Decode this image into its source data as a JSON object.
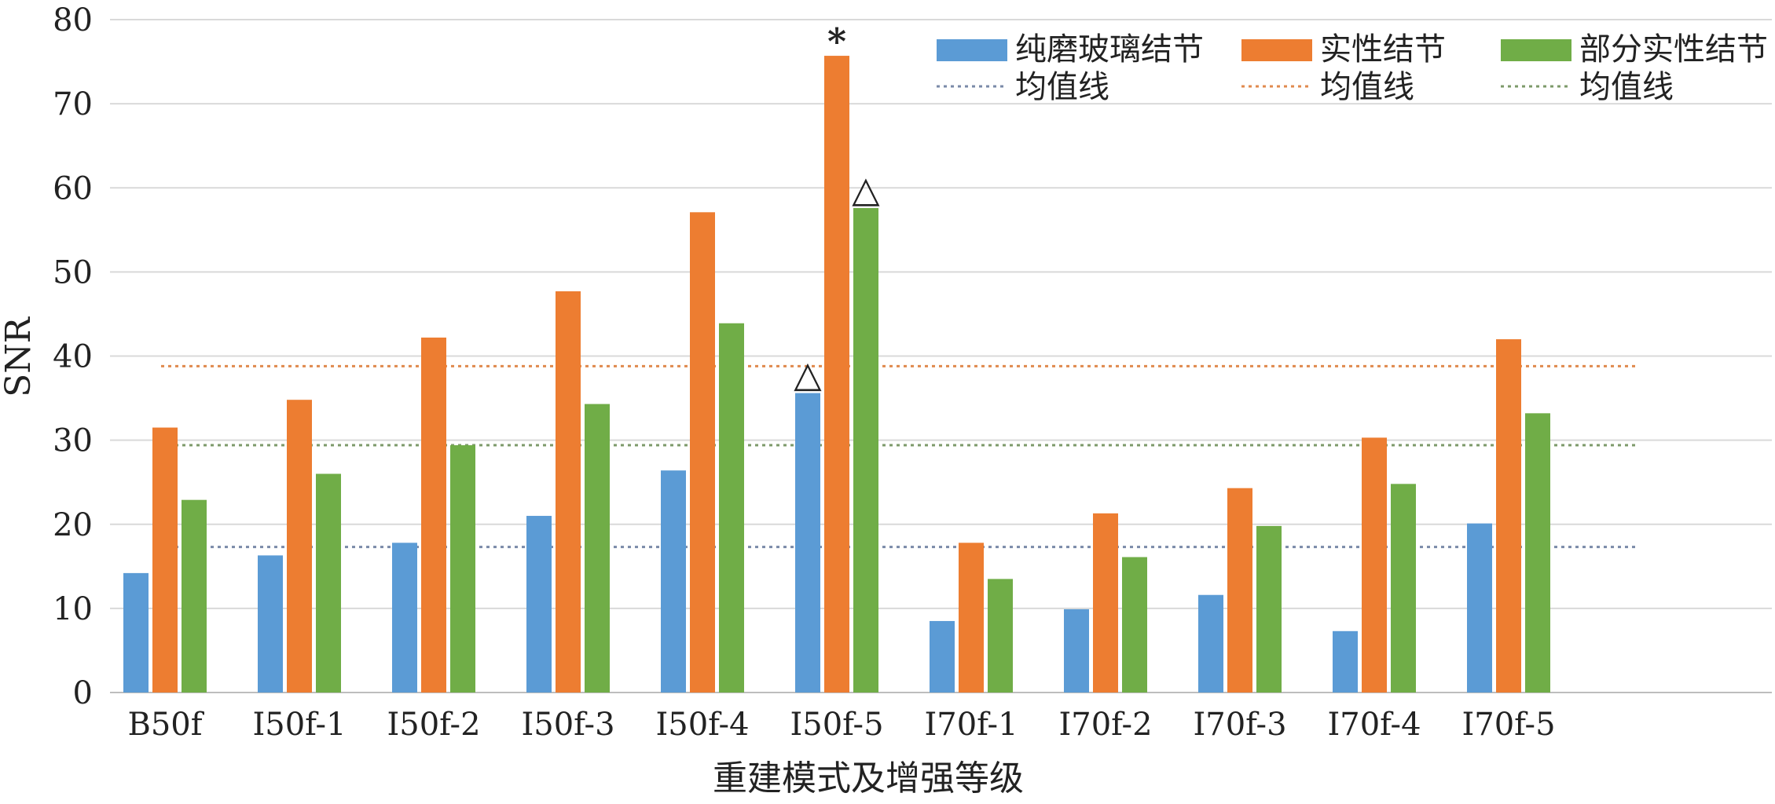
{
  "chart_data": {
    "type": "bar",
    "title": "",
    "xlabel": "重建模式及增强等级",
    "ylabel": "SNR",
    "ylim": [
      0,
      80
    ],
    "yticks": [
      "0",
      "10",
      "20",
      "30",
      "40",
      "50",
      "60",
      "70",
      "80"
    ],
    "grid": true,
    "legend_position": "top-right",
    "categories": [
      "B50f",
      "I50f-1",
      "I50f-2",
      "I50f-3",
      "I50f-4",
      "I50f-5",
      "I70f-1",
      "I70f-2",
      "I70f-3",
      "I70f-4",
      "I70f-5"
    ],
    "series": [
      {
        "name": "纯磨玻璃结节",
        "color": "#5b9bd5",
        "values": [
          14.2,
          16.3,
          17.8,
          21.0,
          26.4,
          35.6,
          8.5,
          9.9,
          11.6,
          7.3,
          20.1
        ]
      },
      {
        "name": "实性结节",
        "color": "#ed7d31",
        "values": [
          31.5,
          34.8,
          42.2,
          47.7,
          57.1,
          75.7,
          17.8,
          21.3,
          24.3,
          30.3,
          42.0
        ]
      },
      {
        "name": "部分实性结节",
        "color": "#70ad47",
        "values": [
          22.9,
          26.0,
          29.4,
          34.3,
          43.9,
          57.6,
          13.5,
          16.1,
          19.8,
          24.8,
          33.2
        ]
      }
    ],
    "mean_lines": [
      {
        "label": "均值线",
        "series": "纯磨玻璃结节",
        "value": 17.3,
        "color": "#7a8aa8"
      },
      {
        "label": "均值线",
        "series": "实性结节",
        "value": 38.8,
        "color": "#e08a4e"
      },
      {
        "label": "均值线",
        "series": "部分实性结节",
        "value": 29.4,
        "color": "#7d9a6a"
      }
    ],
    "annotations": [
      {
        "text": "*",
        "category": "I50f-5",
        "series": "实性结节"
      },
      {
        "text": "△",
        "category": "I50f-5",
        "series": "纯磨玻璃结节"
      },
      {
        "text": "△",
        "category": "I50f-5",
        "series": "部分实性结节"
      }
    ]
  }
}
